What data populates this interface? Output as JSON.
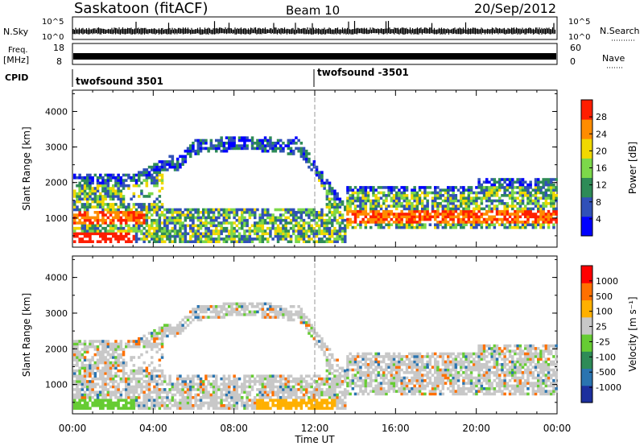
{
  "header": {
    "station": "Saskatoon (fitACF)",
    "beam": "Beam 10",
    "date": "20/Sep/2012"
  },
  "nsky_panel": {
    "left_label": "N.Sky",
    "right_label": "N.Search",
    "left_ticks": [
      "10^5",
      "10^0"
    ],
    "right_ticks": [
      "10^5",
      "10^0"
    ]
  },
  "freq_panel": {
    "left_label_1": "Freq.",
    "left_label_2": "[MHz]",
    "right_label": "Nave",
    "left_ticks": [
      "18",
      "8"
    ],
    "right_ticks": [
      "60",
      "0"
    ]
  },
  "cpid_panel": {
    "label": "CPID",
    "segments": [
      "twofsound 3501",
      "twofsound -3501"
    ]
  },
  "time_axis": {
    "label": "Time UT",
    "ticks": [
      "00:00",
      "04:00",
      "08:00",
      "12:00",
      "16:00",
      "20:00",
      "00:00"
    ]
  },
  "chart_data": [
    {
      "type": "heatmap",
      "title": "",
      "xlabel": "Time UT",
      "ylabel": "Slant Range [km]",
      "xlim": [
        0,
        24
      ],
      "ylim": [
        180,
        4600
      ],
      "y_ticks": [
        "1000",
        "2000",
        "3000",
        "4000"
      ],
      "colorbar": {
        "label": "Power [dB]",
        "ticks": [
          "28",
          "24",
          "20",
          "16",
          "12",
          "8",
          "4"
        ],
        "colors": [
          "#0000ff",
          "#3050b8",
          "#2e8b57",
          "#7cd84a",
          "#f0d800",
          "#ff8c00",
          "#ff1e00"
        ]
      }
    },
    {
      "type": "heatmap",
      "title": "",
      "xlabel": "Time UT",
      "ylabel": "Slant Range [km]",
      "xlim": [
        0,
        24
      ],
      "ylim": [
        180,
        4600
      ],
      "y_ticks": [
        "1000",
        "2000",
        "3000",
        "4000"
      ],
      "colorbar": {
        "label": "Velocity [m s⁻¹]",
        "ticks": [
          "1000",
          "500",
          "100",
          "25",
          "-25",
          "-100",
          "-500",
          "-1000"
        ],
        "colors": [
          "#1c2f9e",
          "#2a74b0",
          "#2e8b57",
          "#66cc33",
          "#c8c8c8",
          "#ffb000",
          "#ff7000",
          "#ff0000"
        ]
      }
    }
  ]
}
